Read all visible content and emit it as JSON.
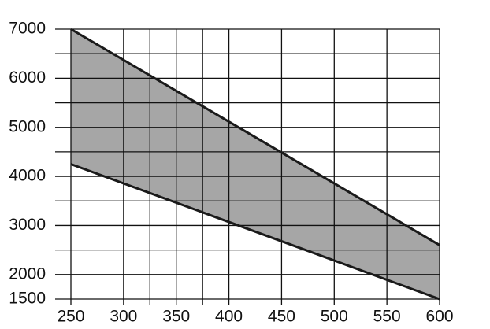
{
  "chart_data": {
    "type": "band",
    "x": [
      250,
      600
    ],
    "series": [
      {
        "color": "#1a1a1a",
        "values": [
          7000,
          2600
        ]
      },
      {
        "color": "#1a1a1a",
        "values": [
          4250,
          1500
        ]
      }
    ],
    "band_color": "#a6a6a6",
    "xlim": [
      250,
      600
    ],
    "ylim": [
      1500,
      7000
    ],
    "xticks": [
      250,
      300,
      350,
      400,
      450,
      500,
      550,
      600
    ],
    "yticks": [
      1500,
      2000,
      3000,
      4000,
      5000,
      6000,
      7000
    ],
    "xgrid": [
      250,
      300,
      325,
      350,
      375,
      400,
      450,
      500,
      550,
      600
    ],
    "ygrid": [
      1500,
      2000,
      2500,
      3000,
      3500,
      4000,
      4500,
      5000,
      5500,
      6000,
      6500,
      7000
    ],
    "grid": true
  }
}
